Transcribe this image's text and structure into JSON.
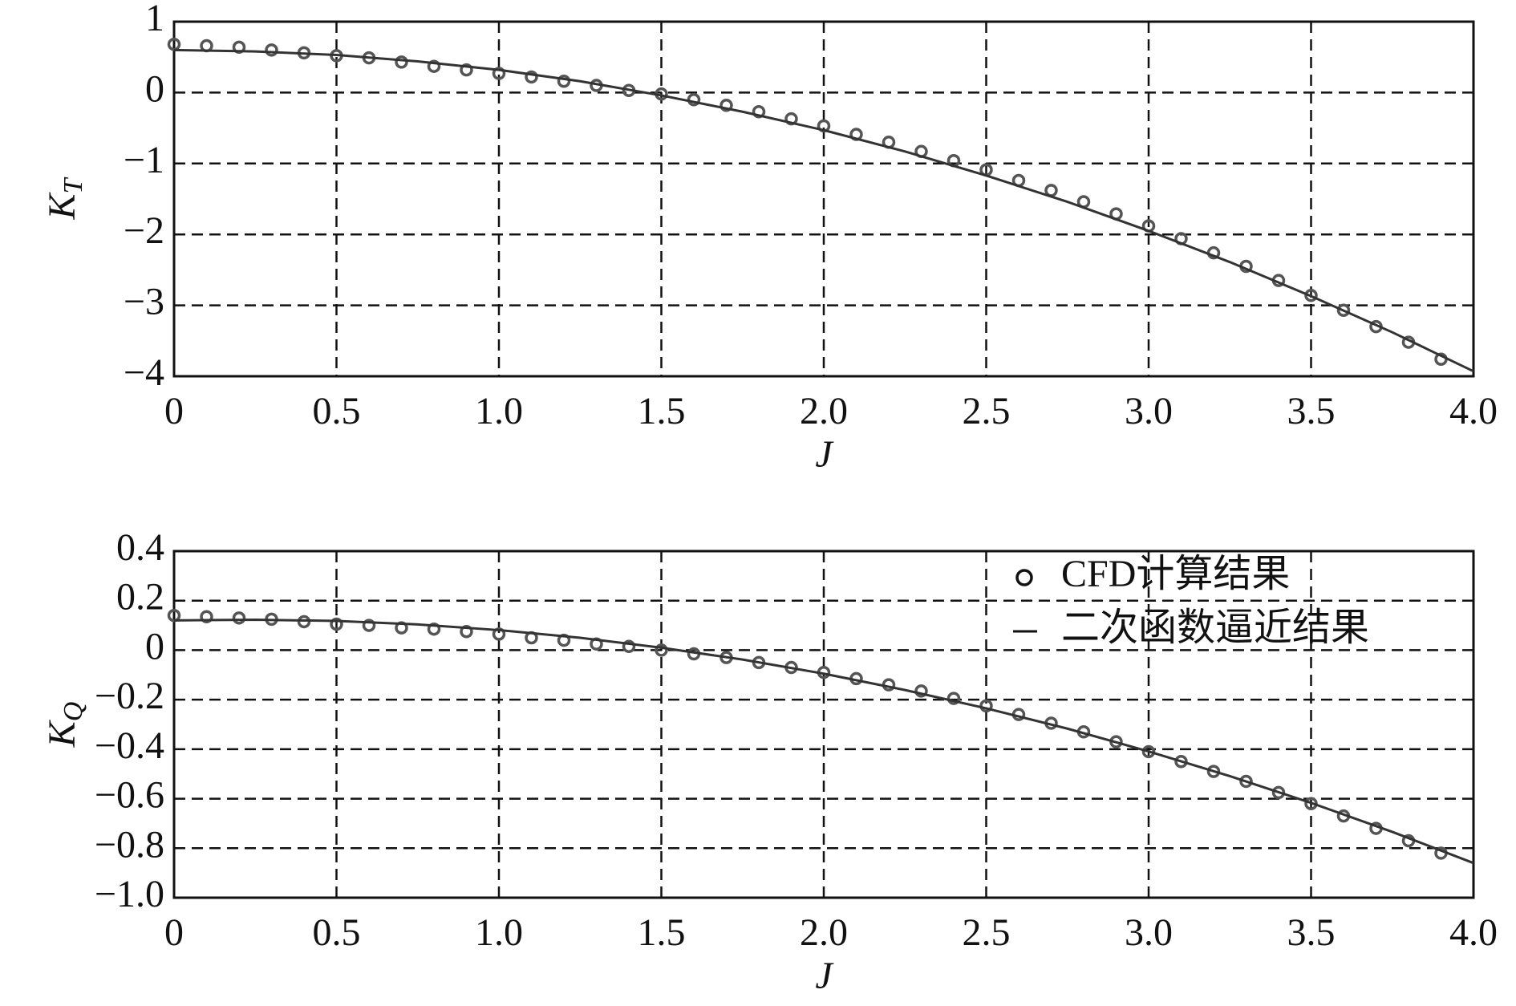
{
  "chart_data": [
    {
      "type": "scatter-line",
      "xlabel": "J",
      "ylabel": {
        "main": "K",
        "sub": "T"
      },
      "xlim": [
        0,
        4
      ],
      "ylim": [
        -4,
        1
      ],
      "xticks": [
        0,
        0.5,
        {
          "value": 1,
          "label": "1.0"
        },
        1.5,
        {
          "value": 2,
          "label": "2.0"
        },
        2.5,
        {
          "value": 3,
          "label": "3.0"
        },
        3.5,
        {
          "value": 4,
          "label": "4.0"
        }
      ],
      "yticks": [
        {
          "value": -4,
          "label": "−4"
        },
        {
          "value": -3,
          "label": "−3"
        },
        {
          "value": -2,
          "label": "−2"
        },
        {
          "value": -1,
          "label": "−1"
        },
        0,
        1
      ],
      "grid": true,
      "series": [
        {
          "kind": "points",
          "color": "#555555",
          "x": [
            0,
            0.1,
            0.2,
            0.3,
            0.4,
            0.5,
            0.6,
            0.7,
            0.8,
            0.9,
            1.0,
            1.1,
            1.2,
            1.3,
            1.4,
            1.5,
            1.6,
            1.7,
            1.8,
            1.9,
            2.0,
            2.1,
            2.2,
            2.3,
            2.4,
            2.5,
            2.6,
            2.7,
            2.8,
            2.9,
            3.0,
            3.1,
            3.2,
            3.3,
            3.4,
            3.5,
            3.6,
            3.7,
            3.8,
            3.9
          ],
          "values": [
            0.68,
            0.66,
            0.64,
            0.6,
            0.56,
            0.52,
            0.49,
            0.43,
            0.37,
            0.32,
            0.27,
            0.22,
            0.16,
            0.1,
            0.03,
            -0.02,
            -0.1,
            -0.18,
            -0.27,
            -0.37,
            -0.47,
            -0.59,
            -0.7,
            -0.83,
            -0.96,
            -1.09,
            -1.24,
            -1.38,
            -1.54,
            -1.71,
            -1.88,
            -2.06,
            -2.26,
            -2.45,
            -2.65,
            -2.86,
            -3.07,
            -3.3,
            -3.52,
            -3.76
          ]
        },
        {
          "kind": "line",
          "color": "#333333",
          "x": [
            0,
            0.25,
            0.5,
            0.75,
            1,
            1.25,
            1.5,
            1.75,
            2,
            2.25,
            2.5,
            2.75,
            3,
            3.25,
            3.5,
            3.75,
            4
          ],
          "values": [
            0.6,
            0.58,
            0.53,
            0.44,
            0.32,
            0.16,
            -0.04,
            -0.27,
            -0.53,
            -0.83,
            -1.17,
            -1.54,
            -1.95,
            -2.39,
            -2.87,
            -3.38,
            -3.93
          ]
        }
      ]
    },
    {
      "type": "scatter-line",
      "xlabel": "J",
      "ylabel": {
        "main": "K",
        "sub": "Q"
      },
      "xlim": [
        0,
        4
      ],
      "ylim": [
        -1,
        0.4
      ],
      "xticks": [
        0,
        0.5,
        {
          "value": 1,
          "label": "1.0"
        },
        1.5,
        {
          "value": 2,
          "label": "2.0"
        },
        2.5,
        {
          "value": 3,
          "label": "3.0"
        },
        3.5,
        {
          "value": 4,
          "label": "4.0"
        }
      ],
      "yticks": [
        {
          "value": -1,
          "label": "−1.0"
        },
        {
          "value": -0.8,
          "label": "−0.8"
        },
        {
          "value": -0.6,
          "label": "−0.6"
        },
        {
          "value": -0.4,
          "label": "−0.4"
        },
        {
          "value": -0.2,
          "label": "−0.2"
        },
        0,
        0.2,
        0.4
      ],
      "grid": true,
      "legend": "upper right",
      "series": [
        {
          "kind": "points",
          "name": "CFD计算结果",
          "color": "#555555",
          "x": [
            0,
            0.1,
            0.2,
            0.3,
            0.4,
            0.5,
            0.6,
            0.7,
            0.8,
            0.9,
            1.0,
            1.1,
            1.2,
            1.3,
            1.4,
            1.5,
            1.6,
            1.7,
            1.8,
            1.9,
            2.0,
            2.1,
            2.2,
            2.3,
            2.4,
            2.5,
            2.6,
            2.7,
            2.8,
            2.9,
            3.0,
            3.1,
            3.2,
            3.3,
            3.4,
            3.5,
            3.6,
            3.7,
            3.8,
            3.9
          ],
          "values": [
            0.14,
            0.135,
            0.13,
            0.125,
            0.115,
            0.105,
            0.1,
            0.09,
            0.085,
            0.075,
            0.065,
            0.05,
            0.04,
            0.025,
            0.015,
            0.0,
            -0.015,
            -0.03,
            -0.05,
            -0.07,
            -0.09,
            -0.115,
            -0.14,
            -0.165,
            -0.195,
            -0.225,
            -0.26,
            -0.295,
            -0.33,
            -0.37,
            -0.41,
            -0.45,
            -0.49,
            -0.53,
            -0.575,
            -0.62,
            -0.67,
            -0.72,
            -0.77,
            -0.82
          ]
        },
        {
          "kind": "line",
          "name": "二次函数逼近结果",
          "color": "#333333",
          "x": [
            0,
            0.25,
            0.5,
            0.75,
            1,
            1.25,
            1.5,
            1.75,
            2,
            2.25,
            2.5,
            2.75,
            3,
            3.25,
            3.5,
            3.75,
            4
          ],
          "values": [
            0.12,
            0.123,
            0.118,
            0.104,
            0.081,
            0.05,
            0.01,
            -0.038,
            -0.095,
            -0.161,
            -0.235,
            -0.317,
            -0.409,
            -0.509,
            -0.617,
            -0.734,
            -0.86
          ]
        }
      ]
    }
  ]
}
